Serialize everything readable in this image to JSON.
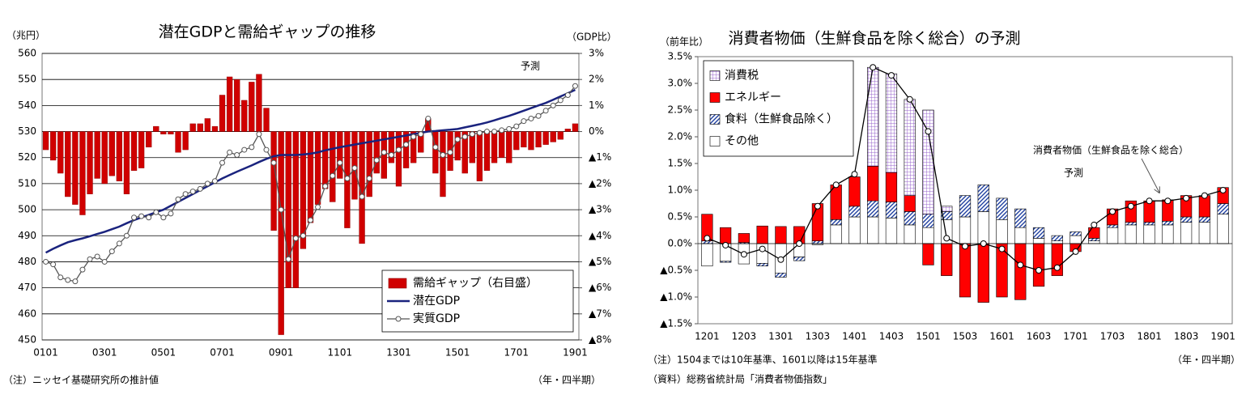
{
  "chart_data": [
    {
      "type": "bar_line",
      "title": "潜在GDPと需給ギャップの推移",
      "y_label": "（兆円）",
      "y2_label": "（GDP比）",
      "x_label": "（年・四半期）",
      "note": "（注）ニッセイ基礎研究所の推計値",
      "annotation": "予測",
      "categories": [
        "0101",
        null,
        null,
        null,
        null,
        null,
        null,
        null,
        "0301",
        null,
        null,
        null,
        null,
        null,
        null,
        null,
        "0501",
        null,
        null,
        null,
        null,
        null,
        null,
        null,
        "0701",
        null,
        null,
        null,
        null,
        null,
        null,
        null,
        "0901",
        null,
        null,
        null,
        null,
        null,
        null,
        null,
        "1101",
        null,
        null,
        null,
        null,
        null,
        null,
        null,
        "1301",
        null,
        null,
        null,
        null,
        null,
        null,
        null,
        "1501",
        null,
        null,
        null,
        null,
        null,
        null,
        null,
        "1701",
        null,
        null,
        null,
        null,
        null,
        null,
        null,
        "1901"
      ],
      "series": [
        {
          "name": "需給ギャップ（右目盛）",
          "type": "bar",
          "axis": "y2",
          "color": "#d00000",
          "values": [
            -0.7,
            -1.1,
            -1.6,
            -2.5,
            -2.8,
            -3.2,
            -2.4,
            -1.8,
            -2.0,
            -1.7,
            -1.9,
            -2.4,
            -1.5,
            -1.4,
            -0.6,
            0.2,
            -0.1,
            -0.1,
            -0.8,
            -0.7,
            0.3,
            0.3,
            0.5,
            0.2,
            1.4,
            2.1,
            2.0,
            1.2,
            1.9,
            2.2,
            0.9,
            -3.8,
            -7.8,
            -6.0,
            -6.0,
            -4.5,
            -3.5,
            -2.8,
            -2.2,
            -2.7,
            -1.8,
            -3.7,
            -2.6,
            -4.3,
            -2.5,
            -1.6,
            -1.8,
            -1.2,
            -2.1,
            -1.4,
            -1.2,
            -0.8,
            0.5,
            -1.6,
            -2.5,
            -1.5,
            -1.1,
            -1.6,
            -1.2,
            -1.9,
            -1.5,
            -1.2,
            -1.0,
            -1.2,
            -0.7,
            -0.6,
            -0.7,
            -0.6,
            -0.5,
            -0.4,
            -0.3,
            0.1,
            0.3
          ]
        },
        {
          "name": "潜在GDP",
          "type": "line",
          "color": "#1a237e",
          "values": [
            483.5,
            485,
            486.3,
            487.5,
            488.3,
            489,
            489.8,
            490.7,
            491.5,
            492.5,
            493.5,
            494.8,
            496,
            497,
            498,
            499,
            500,
            501.5,
            503,
            504.5,
            506,
            507.5,
            509,
            510.5,
            512,
            513.3,
            514.6,
            515.8,
            517,
            518.3,
            519.5,
            520.5,
            521,
            521,
            521,
            521.2,
            521.5,
            522,
            522.8,
            523.4,
            524,
            524.5,
            525,
            525.5,
            526,
            526.5,
            527,
            527.5,
            528,
            528.5,
            529,
            529.5,
            530,
            530.2,
            530.5,
            530.7,
            531,
            531.6,
            532.2,
            532.8,
            533.5,
            534.3,
            535.2,
            536,
            537,
            538,
            539,
            540,
            541,
            542.2,
            543.5,
            544.7,
            546
          ]
        },
        {
          "name": "実質GDP",
          "type": "line",
          "marker": "circle",
          "color": "#555555",
          "values": [
            480,
            479,
            474,
            473,
            472.5,
            477,
            481,
            482,
            480,
            484,
            487,
            490,
            497,
            497.5,
            497,
            499,
            497,
            498.5,
            504,
            506,
            507,
            508,
            510,
            511,
            518,
            522,
            521,
            523,
            524,
            529,
            523,
            518,
            500,
            481,
            489,
            490,
            496,
            501,
            509,
            513,
            518,
            512,
            516,
            505,
            512,
            519,
            522,
            521,
            523,
            525,
            528,
            529,
            535,
            524,
            521,
            522,
            527,
            528,
            529,
            529.5,
            530,
            530,
            530.5,
            531,
            532,
            534,
            535,
            536,
            538,
            540,
            542,
            544,
            547.5
          ]
        }
      ],
      "ylim": [
        450,
        560
      ],
      "yticks": [
        450,
        460,
        470,
        480,
        490,
        500,
        510,
        520,
        530,
        540,
        550,
        560
      ],
      "y2lim": [
        -8,
        3
      ],
      "y2ticks": [
        {
          "value": -8,
          "label": "▲8%"
        },
        {
          "value": -7,
          "label": "▲7%"
        },
        {
          "value": -6,
          "label": "▲6%"
        },
        {
          "value": -5,
          "label": "▲5%"
        },
        {
          "value": -4,
          "label": "▲4%"
        },
        {
          "value": -3,
          "label": "▲3%"
        },
        {
          "value": -2,
          "label": "▲2%"
        },
        {
          "value": -1,
          "label": "▲1%"
        },
        {
          "value": 0,
          "label": "0%"
        },
        {
          "value": 1,
          "label": "1%"
        },
        {
          "value": 2,
          "label": "2%"
        },
        {
          "value": 3,
          "label": "3%"
        }
      ],
      "grid": true,
      "legend": "lower right"
    },
    {
      "type": "stacked_bar_line",
      "title": "消費者物価（生鮮食品を除く総合）の予測",
      "y_label": "（前年比）",
      "x_label": "（年・四半期）",
      "notes": [
        "（注）1504までは10年基準、1601以降は15年基準",
        "（資料）総務省統計局「消費者物価指数」"
      ],
      "annotation": "予測",
      "categories": [
        "1201",
        null,
        "1203",
        null,
        "1301",
        null,
        "1303",
        null,
        "1401",
        null,
        "1403",
        null,
        "1501",
        null,
        "1503",
        null,
        "1601",
        null,
        "1603",
        null,
        "1701",
        null,
        "1703",
        null,
        "1801",
        null,
        "1803",
        null,
        "1901"
      ],
      "series": [
        {
          "name": "消費税",
          "type": "bar",
          "color": "#9966cc",
          "pattern": "grid",
          "values": [
            null,
            null,
            null,
            null,
            null,
            null,
            null,
            null,
            null,
            1.85,
            1.85,
            1.8,
            1.95,
            0.1,
            null,
            null,
            null,
            null,
            null,
            null,
            null,
            null,
            null,
            null,
            null,
            null,
            null,
            null,
            null
          ]
        },
        {
          "name": "エネルギー",
          "type": "bar",
          "color": "#ff0000",
          "values": [
            0.5,
            0.3,
            0.17,
            0.33,
            0.32,
            0.32,
            0.7,
            0.65,
            0.55,
            0.65,
            0.55,
            0.3,
            -0.4,
            -0.6,
            -1.0,
            -1.1,
            -1.0,
            -1.05,
            -0.8,
            -0.6,
            -0.15,
            0.2,
            0.3,
            0.4,
            0.4,
            0.4,
            0.4,
            0.4,
            0.3
          ]
        },
        {
          "name": "食料（生鮮食品除く）",
          "type": "bar",
          "color": "#1f3fa0",
          "pattern": "hatch",
          "values": [
            0.05,
            -0.02,
            0.02,
            -0.05,
            -0.08,
            -0.07,
            0.05,
            0.1,
            0.2,
            0.3,
            0.3,
            0.25,
            0.25,
            0.15,
            0.4,
            0.5,
            0.4,
            0.35,
            0.2,
            0.1,
            0.07,
            0.05,
            0.05,
            0.05,
            0.05,
            0.07,
            0.1,
            0.1,
            0.2
          ]
        },
        {
          "name": "その他",
          "type": "bar",
          "color": "#ffffff",
          "values": [
            -0.42,
            -0.33,
            -0.38,
            -0.37,
            -0.55,
            -0.25,
            -0.02,
            0.35,
            0.5,
            0.5,
            0.48,
            0.35,
            0.3,
            0.45,
            0.5,
            0.6,
            0.45,
            0.3,
            0.1,
            0.05,
            0.15,
            0.05,
            0.3,
            0.35,
            0.35,
            0.35,
            0.4,
            0.4,
            0.55
          ]
        },
        {
          "name": "消費者物価（生鮮食品を除く総合）",
          "type": "line",
          "marker": "circle",
          "color": "#000000",
          "values": [
            0.1,
            -0.03,
            -0.2,
            -0.1,
            -0.3,
            0.0,
            0.7,
            1.1,
            1.3,
            3.3,
            3.15,
            2.7,
            2.1,
            0.1,
            -0.05,
            0.0,
            -0.1,
            -0.4,
            -0.5,
            -0.45,
            -0.15,
            0.35,
            0.6,
            0.7,
            0.8,
            0.8,
            0.85,
            0.9,
            1.0
          ]
        }
      ],
      "ylim": [
        -1.5,
        3.5
      ],
      "yticks": [
        {
          "value": -1.5,
          "label": "▲1.5%"
        },
        {
          "value": -1.0,
          "label": "▲1.0%"
        },
        {
          "value": -0.5,
          "label": "▲0.5%"
        },
        {
          "value": 0,
          "label": "0.0%"
        },
        {
          "value": 0.5,
          "label": "0.5%"
        },
        {
          "value": 1.0,
          "label": "1.0%"
        },
        {
          "value": 1.5,
          "label": "1.5%"
        },
        {
          "value": 2.0,
          "label": "2.0%"
        },
        {
          "value": 2.5,
          "label": "2.5%"
        },
        {
          "value": 3.0,
          "label": "3.0%"
        },
        {
          "value": 3.5,
          "label": "3.5%"
        }
      ],
      "grid": false,
      "legend": "upper left"
    }
  ]
}
